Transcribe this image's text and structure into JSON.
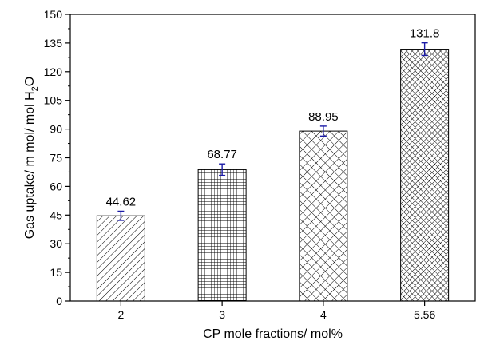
{
  "chart_data": {
    "type": "bar",
    "categories": [
      "2",
      "3",
      "4",
      "5.56"
    ],
    "values": [
      44.62,
      68.77,
      88.95,
      131.8
    ],
    "error": [
      2.4,
      3.0,
      2.6,
      3.3
    ],
    "data_labels": [
      "44.62",
      "68.77",
      "88.95",
      "131.8"
    ],
    "patterns": [
      "diagonal",
      "grid",
      "crosshatch",
      "dense-crosshatch"
    ],
    "xlabel": "CP mole fractions/ mol%",
    "ylabel": {
      "text": "Gas uptake/ m mol/ mol H",
      "sub": "2",
      "suffix": "O"
    },
    "ylim": [
      0,
      150
    ],
    "yticks": [
      "0",
      "15",
      "30",
      "45",
      "60",
      "75",
      "90",
      "105",
      "120",
      "135",
      "150"
    ],
    "grid": false,
    "legend": "none",
    "colors": {
      "bar_stroke": "#000000",
      "pattern": "#000000",
      "error_bar": "#1a1aa6",
      "axis": "#000000"
    }
  }
}
